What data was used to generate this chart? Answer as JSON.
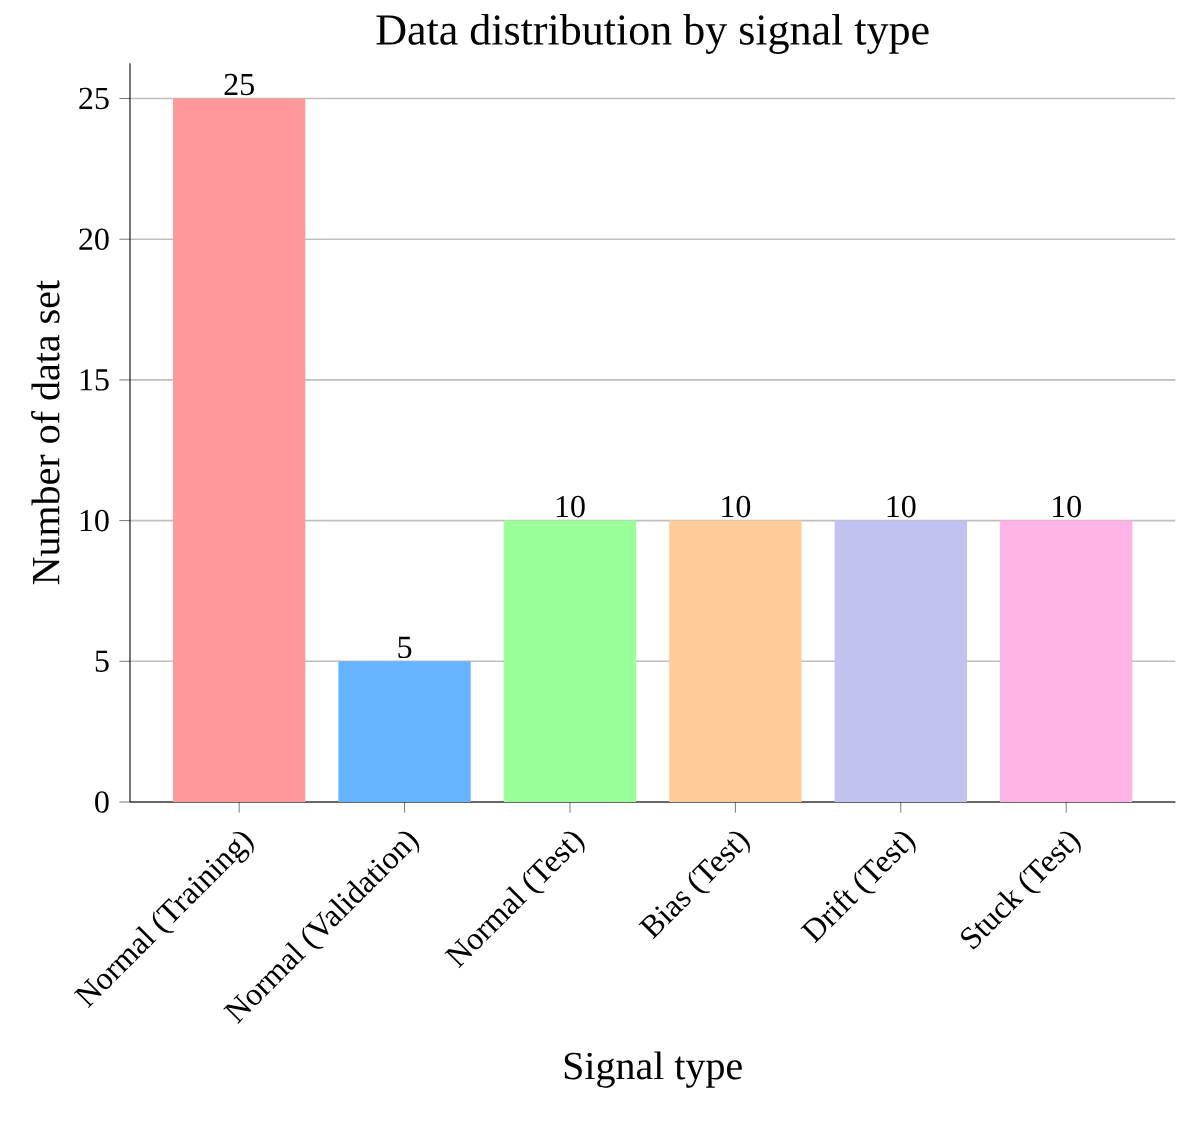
{
  "chart_data": {
    "type": "bar",
    "title": "Data distribution by signal type",
    "xlabel": "Signal type",
    "ylabel": "Number of data set",
    "categories": [
      "Normal (Training)",
      "Normal (Validation)",
      "Normal (Test)",
      "Bias (Test)",
      "Drift (Test)",
      "Stuck (Test)"
    ],
    "values": [
      25,
      5,
      10,
      10,
      10,
      10
    ],
    "colors": [
      "#ff9999",
      "#66b3ff",
      "#99ff99",
      "#ffcc99",
      "#c2c2f0",
      "#ffb3e6"
    ],
    "ylim": [
      0,
      26.25
    ],
    "yticks": [
      0,
      5,
      10,
      15,
      20,
      25
    ],
    "grid": "y",
    "data_labels": true
  }
}
